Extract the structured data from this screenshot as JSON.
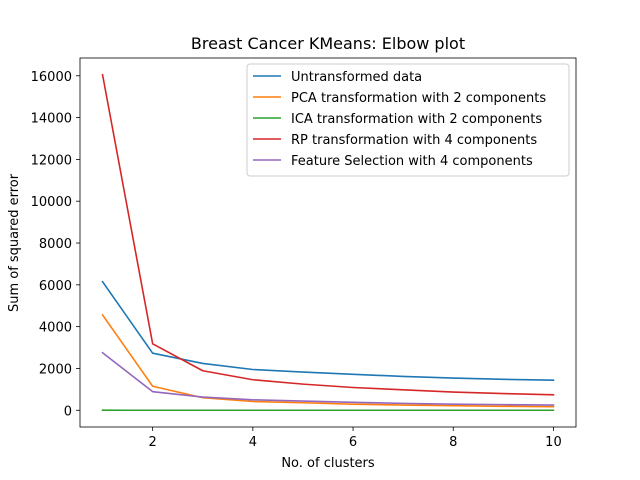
{
  "chart_data": {
    "type": "line",
    "title": "Breast Cancer KMeans: Elbow plot",
    "xlabel": "No. of clusters",
    "ylabel": "Sum of squared error",
    "xlim": [
      0.55,
      10.45
    ],
    "ylim": [
      -800,
      16850
    ],
    "xticks": [
      2,
      4,
      6,
      8,
      10
    ],
    "yticks": [
      0,
      2000,
      4000,
      6000,
      8000,
      10000,
      12000,
      14000,
      16000
    ],
    "grid": false,
    "legend_position": "top-right",
    "x": [
      1,
      2,
      3,
      4,
      5,
      6,
      7,
      8,
      9,
      10
    ],
    "series": [
      {
        "name": "Untransformed data",
        "color": "#1f77b4",
        "values": [
          6150,
          2730,
          2240,
          1950,
          1830,
          1720,
          1620,
          1540,
          1480,
          1440
        ]
      },
      {
        "name": "PCA transformation with 2 components",
        "color": "#ff7f0e",
        "values": [
          4560,
          1150,
          600,
          420,
          360,
          290,
          250,
          220,
          190,
          170
        ]
      },
      {
        "name": "ICA transformation with 2 components",
        "color": "#2ca02c",
        "values": [
          2,
          1,
          1,
          1,
          1,
          1,
          1,
          1,
          1,
          1
        ]
      },
      {
        "name": "RP transformation with 4 components",
        "color": "#d62728",
        "values": [
          16050,
          3180,
          1890,
          1460,
          1250,
          1090,
          980,
          870,
          800,
          740
        ]
      },
      {
        "name": "Feature Selection with 4 components",
        "color": "#9467bd",
        "values": [
          2750,
          890,
          630,
          500,
          440,
          380,
          330,
          290,
          270,
          250
        ]
      }
    ]
  }
}
